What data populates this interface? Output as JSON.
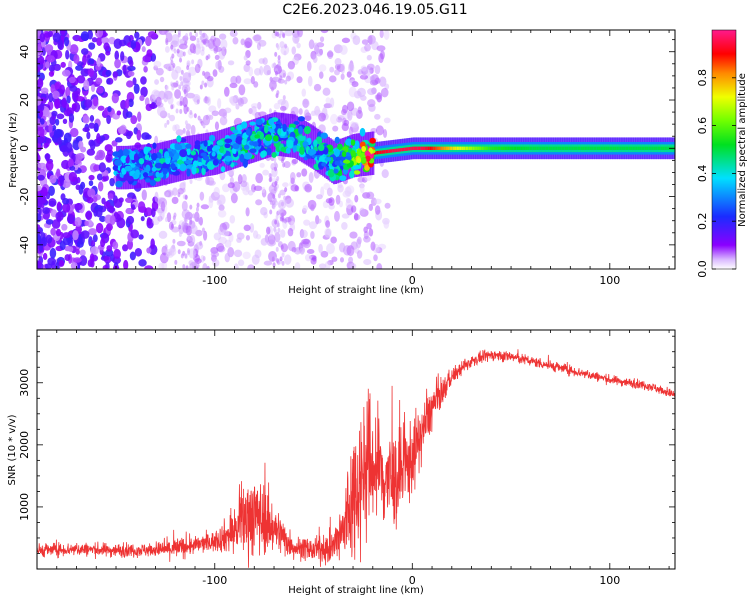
{
  "title": "C2E6.2023.046.19.05.G11",
  "colors": {
    "snr_line": "#ee3333",
    "spectrogram_low": "#7a00ff",
    "spectrogram_mid": "#00e0e0",
    "spectrogram_high": "#ff0000"
  },
  "chart_data": [
    {
      "type": "heatmap",
      "title": "",
      "xlabel": "Height of straight line (km)",
      "ylabel": "Frequency (Hz)",
      "xlim": [
        -190,
        133
      ],
      "ylim": [
        -50,
        49
      ],
      "x_ticks": [
        -100,
        0,
        100
      ],
      "x_tick_labels": [
        "-100",
        "0",
        "100"
      ],
      "y_ticks": [
        -40,
        -20,
        0,
        20,
        40
      ],
      "y_tick_labels": [
        "-40",
        "-20",
        "0",
        "20",
        "40"
      ],
      "colorbar": {
        "label": "Normalized spectral amplitude",
        "range": [
          0.0,
          1.0
        ],
        "ticks": [
          0.0,
          0.2,
          0.4,
          0.6,
          0.8
        ],
        "tick_labels": [
          "0.0",
          "0.2",
          "0.4",
          "0.6",
          "0.8"
        ],
        "colormap": "rainbow (purple-blue-cyan-green-yellow-red-pink)"
      },
      "ridge": [
        {
          "x": -145,
          "y": -8,
          "amp": 0.3
        },
        {
          "x": -130,
          "y": -7,
          "amp": 0.35
        },
        {
          "x": -115,
          "y": -4,
          "amp": 0.35
        },
        {
          "x": -100,
          "y": -2,
          "amp": 0.35
        },
        {
          "x": -85,
          "y": 2,
          "amp": 0.4
        },
        {
          "x": -70,
          "y": 6,
          "amp": 0.4
        },
        {
          "x": -60,
          "y": 5,
          "amp": 0.4
        },
        {
          "x": -50,
          "y": 0,
          "amp": 0.35
        },
        {
          "x": -40,
          "y": -6,
          "amp": 0.4
        },
        {
          "x": -30,
          "y": -3,
          "amp": 0.5
        },
        {
          "x": -20,
          "y": -2,
          "amp": 0.9
        },
        {
          "x": -10,
          "y": -1,
          "amp": 0.95
        },
        {
          "x": 0,
          "y": 0,
          "amp": 0.95
        },
        {
          "x": 5,
          "y": 0,
          "amp": 0.95
        },
        {
          "x": 20,
          "y": 0,
          "amp": 0.75
        },
        {
          "x": 40,
          "y": 0,
          "amp": 0.55
        },
        {
          "x": 60,
          "y": 0,
          "amp": 0.5
        },
        {
          "x": 80,
          "y": 0,
          "amp": 0.5
        },
        {
          "x": 100,
          "y": 0,
          "amp": 0.5
        },
        {
          "x": 133,
          "y": 0,
          "amp": 0.5
        }
      ]
    },
    {
      "type": "line",
      "title": "",
      "xlabel": "Height of straight line (km)",
      "ylabel": "SNR (10 * v/v)",
      "xlim": [
        -190,
        133
      ],
      "ylim": [
        0,
        3850
      ],
      "x_ticks": [
        -100,
        0,
        100
      ],
      "x_tick_labels": [
        "-100",
        "0",
        "100"
      ],
      "y_ticks": [
        1000,
        2000,
        3000
      ],
      "y_tick_labels": [
        "1000",
        "2000",
        "3000"
      ],
      "series": [
        {
          "x": [
            -190,
            -170,
            -150,
            -130,
            -120,
            -110,
            -100,
            -90,
            -82,
            -75,
            -68,
            -60,
            -50,
            -40,
            -35,
            -30,
            -25,
            -20,
            -15,
            -10,
            -5,
            0,
            5,
            10,
            15,
            20,
            30,
            40,
            50,
            60,
            80,
            100,
            120,
            133
          ],
          "y": [
            300,
            320,
            300,
            310,
            330,
            380,
            450,
            600,
            900,
            800,
            600,
            350,
            300,
            350,
            600,
            1200,
            1600,
            1700,
            1500,
            1400,
            1500,
            1800,
            2200,
            2600,
            2850,
            3100,
            3350,
            3450,
            3420,
            3350,
            3200,
            3050,
            2950,
            2800
          ],
          "noise": [
            120,
            120,
            120,
            120,
            200,
            150,
            180,
            400,
            800,
            600,
            400,
            200,
            200,
            300,
            700,
            1200,
            1300,
            1200,
            1000,
            900,
            800,
            700,
            500,
            400,
            250,
            150,
            100,
            100,
            100,
            90,
            90,
            80,
            80,
            80
          ]
        }
      ]
    }
  ]
}
